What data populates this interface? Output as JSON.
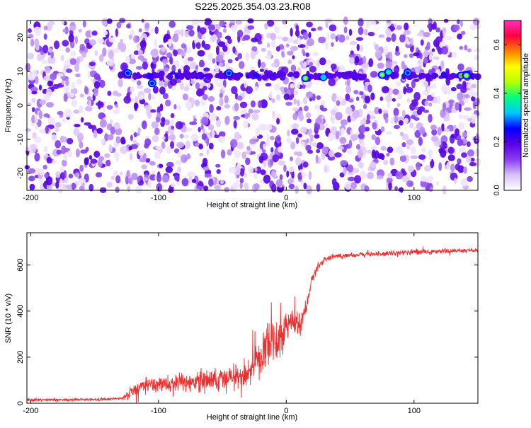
{
  "figure": {
    "title": "S225.2025.354.03.23.R08"
  },
  "chart_data": [
    {
      "type": "heatmap",
      "xlabel": "Height of straight line (km)",
      "ylabel": "Frequency (Hz)",
      "xlim": [
        -203,
        150
      ],
      "ylim": [
        -25,
        25
      ],
      "xticks": [
        -200,
        -100,
        0,
        100
      ],
      "yticks": [
        -20,
        -10,
        0,
        10,
        20
      ],
      "colorbar": {
        "label": "Normalized spectral amplitude",
        "range": [
          0,
          0.7
        ],
        "ticks": [
          0.0,
          0.2,
          0.4,
          0.6
        ],
        "colors": [
          "#ffffff",
          "#d8c0f8",
          "#8a3cf0",
          "#5a00e6",
          "#0000ff",
          "#00c8ff",
          "#00ff80",
          "#b4ff00",
          "#ffff00",
          "#ff8000",
          "#ff0040",
          "#ff30c0"
        ]
      },
      "band": {
        "frequency_hz": 8.8,
        "x_start_km": -130,
        "x_end_km": 150
      },
      "peaks": [
        {
          "x": -124,
          "y": 9.5,
          "amp": 0.25
        },
        {
          "x": -105,
          "y": 6.5,
          "amp": 0.27
        },
        {
          "x": -45,
          "y": 9.5,
          "amp": 0.28
        },
        {
          "x": 15,
          "y": 8.0,
          "amp": 0.45
        },
        {
          "x": 29,
          "y": 8.3,
          "amp": 0.3
        },
        {
          "x": 75,
          "y": 9.0,
          "amp": 0.45
        },
        {
          "x": 80,
          "y": 9.8,
          "amp": 0.4
        },
        {
          "x": 95,
          "y": 9.6,
          "amp": 0.25
        },
        {
          "x": 137,
          "y": 8.8,
          "amp": 0.55
        },
        {
          "x": 141,
          "y": 8.8,
          "amp": 0.42
        }
      ]
    },
    {
      "type": "line",
      "xlabel": "Height of straight line (km)",
      "ylabel": "SNR (10 * v/v)",
      "xlim": [
        -203,
        150
      ],
      "ylim": [
        0,
        740
      ],
      "xticks": [
        -200,
        -100,
        0,
        100
      ],
      "yticks": [
        0,
        200,
        400,
        600
      ],
      "color": "#ee3030",
      "series": [
        {
          "x": [
            -203,
            -180,
            -160,
            -140,
            -128,
            -122,
            -115,
            -100,
            -80,
            -60,
            -45,
            -30,
            -20,
            -15,
            -10,
            -5,
            0,
            5,
            10,
            15,
            20,
            25,
            30,
            40,
            60,
            80,
            100,
            120,
            150
          ],
          "y": [
            15,
            15,
            16,
            17,
            22,
            45,
            70,
            80,
            90,
            100,
            110,
            130,
            200,
            280,
            260,
            300,
            330,
            360,
            330,
            390,
            540,
            595,
            625,
            640,
            645,
            650,
            655,
            660,
            665
          ],
          "noise": [
            8,
            8,
            8,
            8,
            10,
            35,
            45,
            55,
            60,
            65,
            75,
            90,
            110,
            140,
            150,
            130,
            110,
            80,
            70,
            60,
            40,
            25,
            20,
            15,
            15,
            15,
            20,
            15,
            12
          ]
        }
      ]
    }
  ]
}
